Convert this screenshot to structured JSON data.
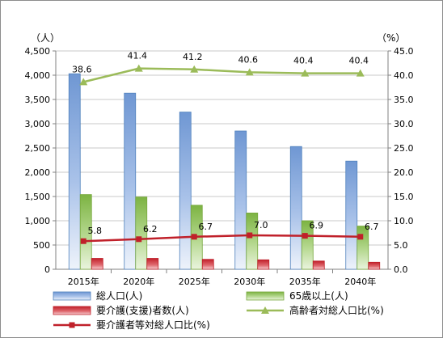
{
  "chart_data": {
    "type": "bar",
    "categories": [
      "2015年",
      "2020年",
      "2025年",
      "2030年",
      "2035年",
      "2040年"
    ],
    "left_axis": {
      "unit_label": "（人）",
      "ylim": [
        0,
        4500
      ],
      "step": 500,
      "tick_labels": [
        "0",
        "500",
        "1,000",
        "1,500",
        "2,000",
        "2,500",
        "3,000",
        "3,500",
        "4,000",
        "4,500"
      ]
    },
    "right_axis": {
      "unit_label": "（%）",
      "ylim": [
        0,
        45
      ],
      "step": 5,
      "tick_labels": [
        "0.0",
        "5.0",
        "10.0",
        "15.0",
        "20.0",
        "25.0",
        "30.0",
        "35.0",
        "40.0",
        "45.0"
      ]
    },
    "grid": true,
    "legend_position": "bottom",
    "series": [
      {
        "name": "総人口(人)",
        "type": "bar",
        "axis": "left",
        "color": "#4f81bd",
        "values": [
          4030,
          3630,
          3240,
          2850,
          2530,
          2230
        ]
      },
      {
        "name": "65歳以上(人)",
        "type": "bar",
        "axis": "left",
        "color": "#77a83c",
        "values": [
          1540,
          1490,
          1320,
          1160,
          1000,
          890
        ]
      },
      {
        "name": "要介護(支援)者数(人)",
        "type": "bar",
        "axis": "left",
        "color": "#c0202a",
        "values": [
          225,
          225,
          205,
          195,
          170,
          145
        ]
      },
      {
        "name": "高齢者対総人口比(%)",
        "type": "line",
        "axis": "right",
        "color": "#9bbb59",
        "marker": "triangle",
        "values": [
          38.6,
          41.4,
          41.2,
          40.6,
          40.4,
          40.4
        ],
        "data_labels": [
          "38.6",
          "41.4",
          "41.2",
          "40.6",
          "40.4",
          "40.4"
        ]
      },
      {
        "name": "要介護者等対総人口比(%)",
        "type": "line",
        "axis": "right",
        "color": "#c0202a",
        "marker": "square",
        "values": [
          5.8,
          6.2,
          6.7,
          7.0,
          6.9,
          6.7
        ],
        "data_labels": [
          "5.8",
          "6.2",
          "6.7",
          "7.0",
          "6.9",
          "6.7"
        ]
      }
    ]
  }
}
